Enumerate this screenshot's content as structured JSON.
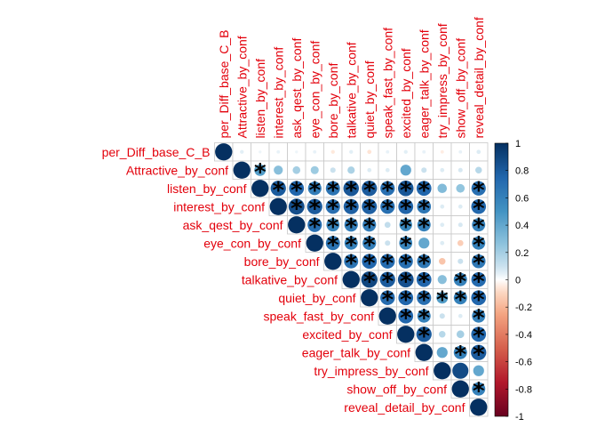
{
  "chart_data": {
    "type": "heatmap",
    "style": "upper-triangle correlation plot, circles sized and colored by correlation, asterisks mark significance",
    "variables": [
      "per_Diff_base_C_B",
      "Attractive_by_conf",
      "listen_by_conf",
      "interest_by_conf",
      "ask_qest_by_conf",
      "eye_con_by_conf",
      "bore_by_conf",
      "talkative_by_conf",
      "quiet_by_conf",
      "speak_fast_by_conf",
      "excited_by_conf",
      "eager_talk_by_conf",
      "try_impress_by_conf",
      "show_off_by_conf",
      "reveal_detail_by_conf"
    ],
    "matrix": [
      [
        1,
        0.05,
        0.03,
        0.04,
        0.03,
        0.04,
        -0.05,
        0.05,
        -0.06,
        0.04,
        0.05,
        0.04,
        -0.04,
        0.04,
        0.06
      ],
      [
        0.05,
        1,
        0.45,
        0.28,
        0.2,
        0.22,
        0.1,
        0.18,
        0.06,
        0.06,
        0.4,
        0.1,
        0.06,
        0.07,
        0.15
      ],
      [
        0.03,
        0.45,
        1,
        0.8,
        0.75,
        0.62,
        0.68,
        0.82,
        0.8,
        0.7,
        0.82,
        0.75,
        0.3,
        0.25,
        0.7
      ],
      [
        0.04,
        0.28,
        0.8,
        1,
        0.86,
        0.8,
        0.7,
        0.78,
        0.78,
        0.7,
        0.76,
        0.66,
        0.06,
        0.06,
        0.74
      ],
      [
        0.03,
        0.2,
        0.75,
        0.86,
        1,
        0.7,
        0.58,
        0.62,
        0.62,
        0.12,
        0.55,
        0.6,
        0.06,
        0.07,
        0.6
      ],
      [
        0.04,
        0.22,
        0.62,
        0.8,
        0.7,
        1,
        0.68,
        0.6,
        0.62,
        0.1,
        0.58,
        0.4,
        0.06,
        -0.12,
        0.6
      ],
      [
        -0.05,
        0.1,
        0.68,
        0.7,
        0.58,
        0.68,
        1,
        0.68,
        0.75,
        0.72,
        0.7,
        0.65,
        -0.15,
        0.1,
        0.65
      ],
      [
        0.05,
        0.18,
        0.82,
        0.78,
        0.62,
        0.6,
        0.68,
        1,
        0.9,
        0.8,
        0.85,
        0.75,
        0.28,
        0.6,
        0.72
      ],
      [
        -0.06,
        0.06,
        0.8,
        0.78,
        0.62,
        0.62,
        0.75,
        0.9,
        1,
        0.72,
        0.75,
        0.7,
        0.45,
        0.6,
        0.75
      ],
      [
        0.04,
        0.06,
        0.7,
        0.7,
        0.12,
        0.1,
        0.72,
        0.8,
        0.72,
        1,
        0.75,
        0.6,
        0.1,
        0.06,
        0.6
      ],
      [
        0.05,
        0.4,
        0.82,
        0.76,
        0.55,
        0.58,
        0.7,
        0.85,
        0.75,
        0.75,
        1,
        0.8,
        0.15,
        0.2,
        0.75
      ],
      [
        0.04,
        0.1,
        0.75,
        0.66,
        0.6,
        0.4,
        0.65,
        0.75,
        0.7,
        0.6,
        0.8,
        1,
        0.4,
        0.6,
        0.8
      ],
      [
        -0.04,
        0.06,
        0.3,
        0.06,
        0.06,
        0.06,
        -0.15,
        0.28,
        0.45,
        0.1,
        0.15,
        0.4,
        1,
        0.88,
        0.4
      ],
      [
        0.04,
        0.07,
        0.25,
        0.06,
        0.07,
        -0.12,
        0.1,
        0.6,
        0.6,
        0.06,
        0.2,
        0.6,
        0.88,
        1,
        0.6
      ],
      [
        0.06,
        0.15,
        0.7,
        0.74,
        0.6,
        0.6,
        0.65,
        0.72,
        0.75,
        0.6,
        0.75,
        0.8,
        0.4,
        0.6,
        1
      ]
    ],
    "significant": [
      [
        1,
        2
      ],
      [
        2,
        3
      ],
      [
        2,
        4
      ],
      [
        2,
        5
      ],
      [
        2,
        6
      ],
      [
        2,
        7
      ],
      [
        2,
        8
      ],
      [
        2,
        9
      ],
      [
        2,
        10
      ],
      [
        2,
        11
      ],
      [
        2,
        14
      ],
      [
        3,
        4
      ],
      [
        3,
        5
      ],
      [
        3,
        6
      ],
      [
        3,
        7
      ],
      [
        3,
        8
      ],
      [
        3,
        9
      ],
      [
        3,
        10
      ],
      [
        3,
        11
      ],
      [
        3,
        14
      ],
      [
        4,
        5
      ],
      [
        4,
        6
      ],
      [
        4,
        7
      ],
      [
        4,
        8
      ],
      [
        4,
        10
      ],
      [
        4,
        11
      ],
      [
        4,
        14
      ],
      [
        5,
        6
      ],
      [
        5,
        7
      ],
      [
        5,
        8
      ],
      [
        5,
        10
      ],
      [
        5,
        14
      ],
      [
        6,
        7
      ],
      [
        6,
        8
      ],
      [
        6,
        9
      ],
      [
        6,
        10
      ],
      [
        6,
        11
      ],
      [
        6,
        14
      ],
      [
        7,
        8
      ],
      [
        7,
        9
      ],
      [
        7,
        10
      ],
      [
        7,
        11
      ],
      [
        7,
        13
      ],
      [
        7,
        14
      ],
      [
        8,
        9
      ],
      [
        8,
        10
      ],
      [
        8,
        11
      ],
      [
        8,
        12
      ],
      [
        8,
        13
      ],
      [
        8,
        14
      ],
      [
        9,
        10
      ],
      [
        9,
        11
      ],
      [
        9,
        14
      ],
      [
        10,
        11
      ],
      [
        10,
        14
      ],
      [
        11,
        13
      ],
      [
        11,
        14
      ],
      [
        13,
        14
      ]
    ],
    "colorbar": {
      "range": [
        -1,
        1
      ],
      "ticks": [
        "1",
        "0.8",
        "0.6",
        "0.4",
        "0.2",
        "0",
        "-0.2",
        "-0.4",
        "-0.6",
        "-0.8",
        "-1"
      ],
      "colors": {
        "negative": "#67001f",
        "neutral": "#ffffff",
        "positive": "#053061"
      }
    },
    "label_color": "#e3000b",
    "grid": true
  }
}
